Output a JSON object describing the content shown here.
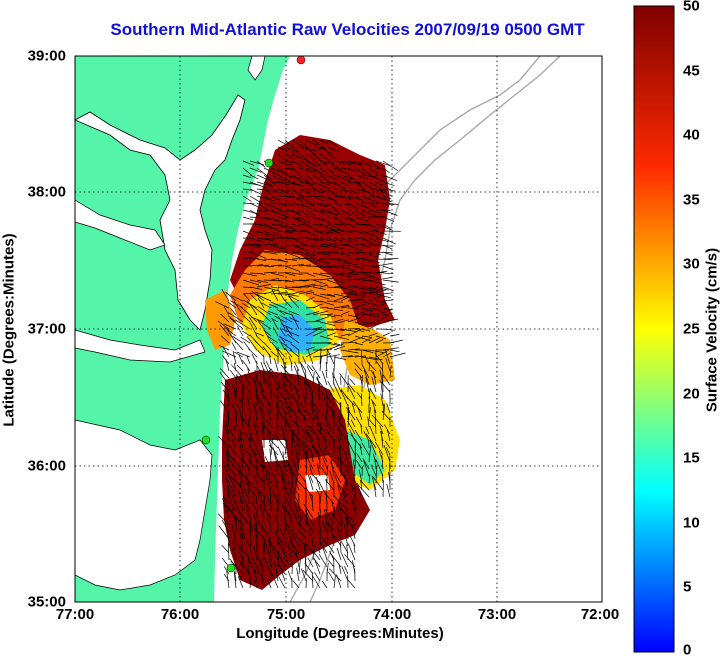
{
  "title": "Southern Mid-Atlantic Raw Velocities 2007/09/19 0500 GMT",
  "x_axis": {
    "label": "Longitude (Degrees:Minutes)",
    "ticks": [
      "77:00",
      "76:00",
      "75:00",
      "74:00",
      "73:00",
      "72:00"
    ]
  },
  "y_axis": {
    "label": "Latitude (Degrees:Minutes)",
    "ticks": [
      "39:00",
      "38:00",
      "37:00",
      "36:00",
      "35:00"
    ]
  },
  "colorbar": {
    "label": "Surface Velocity (cm/s)",
    "ticks": [
      "50",
      "45",
      "40",
      "35",
      "30",
      "25",
      "20",
      "15",
      "10",
      "5",
      "0"
    ],
    "range": [
      0,
      50
    ],
    "colormap": "jet"
  },
  "colors": {
    "land": "#55f5a9",
    "title": "#1010d8",
    "coastline": "#000000",
    "bathymetry": "#a8a8a8"
  },
  "chart_data": {
    "type": "heatmap",
    "lon_range": [
      -77,
      -72
    ],
    "lat_range": [
      35,
      39
    ],
    "velocity_range_cm_s": [
      0,
      50
    ]
  }
}
